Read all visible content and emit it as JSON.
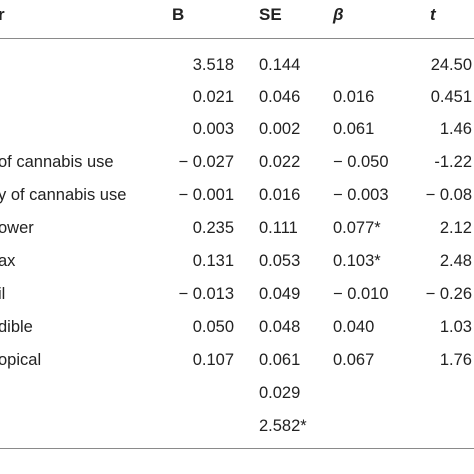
{
  "table": {
    "headers": {
      "predictor": "r",
      "b": "B",
      "se": "SE",
      "beta": "β",
      "t": "t"
    },
    "rows": [
      {
        "label": "",
        "b": "3.518",
        "se": "0.144",
        "beta": "",
        "t": "24.50"
      },
      {
        "label": "",
        "b": "0.021",
        "se": "0.046",
        "beta": "0.016",
        "t": "0.451"
      },
      {
        "label": "",
        "b": "0.003",
        "se": "0.002",
        "beta": "0.061",
        "t": "1.46"
      },
      {
        "label": "of cannabis use",
        "b": "− 0.027",
        "se": "0.022",
        "beta": "− 0.050",
        "t": "-1.22"
      },
      {
        "label": "y of cannabis use",
        "b": "− 0.001",
        "se": "0.016",
        "beta": "− 0.003",
        "t": "− 0.08"
      },
      {
        "label": "ower",
        "b": "0.235",
        "se": "0.111",
        "beta": "0.077*",
        "t": "2.12"
      },
      {
        "label": "ax",
        "b": "0.131",
        "se": "0.053",
        "beta": "0.103*",
        "t": "2.48"
      },
      {
        "label": "il",
        "b": "− 0.013",
        "se": "0.049",
        "beta": "− 0.010",
        "t": "− 0.26"
      },
      {
        "label": "dible",
        "b": "0.050",
        "se": "0.048",
        "beta": "0.040",
        "t": "1.03"
      },
      {
        "label": "opical",
        "b": "0.107",
        "se": "0.061",
        "beta": "0.067",
        "t": "1.76"
      },
      {
        "label": "",
        "b": "",
        "se": "0.029",
        "beta": "",
        "t": ""
      },
      {
        "label": "",
        "b": "",
        "se": "2.582*",
        "beta": "",
        "t": ""
      }
    ]
  }
}
